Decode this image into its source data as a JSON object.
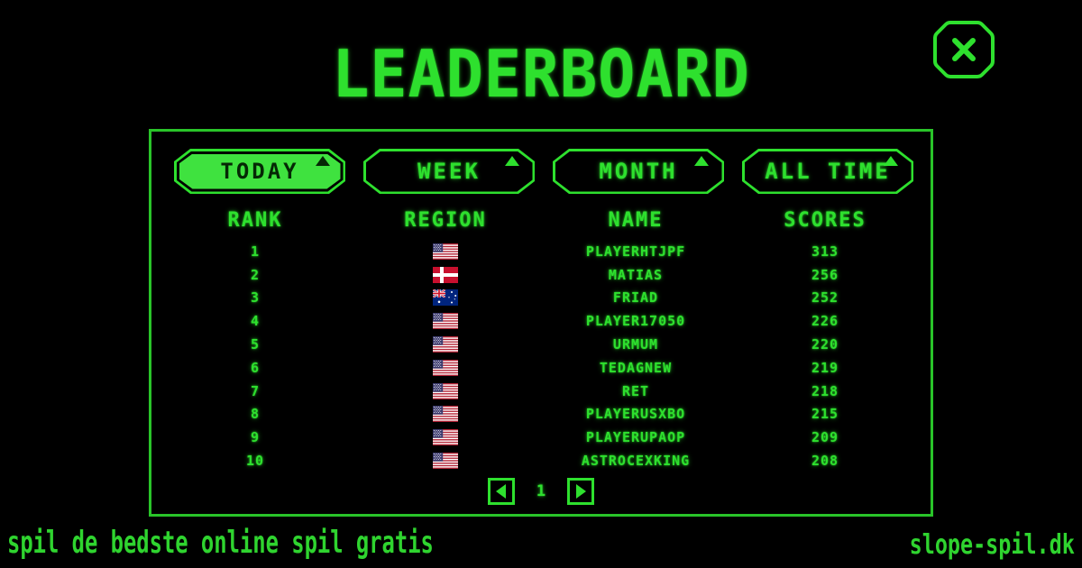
{
  "title": "LEADERBOARD",
  "colors": {
    "accent": "#2ee02e",
    "selected_tab_fill": "#3fe23f",
    "background": "#000000"
  },
  "icons": {
    "close": "x-octagon",
    "tab_marker": "triangle-up",
    "prev": "arrow-left",
    "next": "arrow-right"
  },
  "tabs": [
    {
      "label": "TODAY",
      "selected": true
    },
    {
      "label": "WEEK",
      "selected": false
    },
    {
      "label": "MONTH",
      "selected": false
    },
    {
      "label": "ALL TIME",
      "selected": false
    }
  ],
  "table": {
    "headers": [
      "RANK",
      "REGION",
      "NAME",
      "SCORES"
    ],
    "rows": [
      {
        "rank": "1",
        "region": "us",
        "name": "PLAYERHTJPF",
        "score": "313"
      },
      {
        "rank": "2",
        "region": "dk",
        "name": "MATIAS",
        "score": "256"
      },
      {
        "rank": "3",
        "region": "au",
        "name": "FRIAD",
        "score": "252"
      },
      {
        "rank": "4",
        "region": "us",
        "name": "PLAYER17050",
        "score": "226"
      },
      {
        "rank": "5",
        "region": "us",
        "name": "URMUM",
        "score": "220"
      },
      {
        "rank": "6",
        "region": "us",
        "name": "TEDAGNEW",
        "score": "219"
      },
      {
        "rank": "7",
        "region": "us",
        "name": "RET",
        "score": "218"
      },
      {
        "rank": "8",
        "region": "us",
        "name": "PLAYERUSXBO",
        "score": "215"
      },
      {
        "rank": "9",
        "region": "us",
        "name": "PLAYERUPAOP",
        "score": "209"
      },
      {
        "rank": "10",
        "region": "us",
        "name": "ASTROCEXKING",
        "score": "208"
      }
    ]
  },
  "pagination": {
    "page": "1"
  },
  "footer": {
    "left": "spil de bedste online spil gratis",
    "right": "slope-spil.dk"
  }
}
